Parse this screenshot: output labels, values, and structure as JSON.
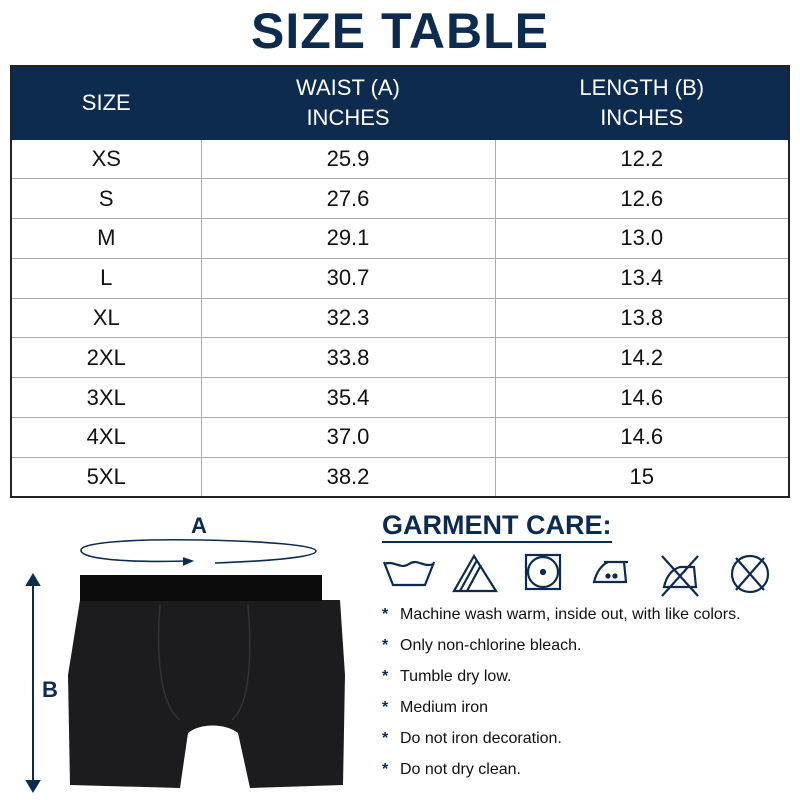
{
  "title": "SIZE TABLE",
  "table": {
    "headers": [
      [
        "SIZE"
      ],
      [
        "WAIST (A)",
        "INCHES"
      ],
      [
        "LENGTH (B)",
        "INCHES"
      ]
    ],
    "rows": [
      [
        "XS",
        "25.9",
        "12.2"
      ],
      [
        "S",
        "27.6",
        "12.6"
      ],
      [
        "M",
        "29.1",
        "13.0"
      ],
      [
        "L",
        "30.7",
        "13.4"
      ],
      [
        "XL",
        "32.3",
        "13.8"
      ],
      [
        "2XL",
        "33.8",
        "14.2"
      ],
      [
        "3XL",
        "35.4",
        "14.6"
      ],
      [
        "4XL",
        "37.0",
        "14.6"
      ],
      [
        "5XL",
        "38.2",
        "15"
      ]
    ]
  },
  "diagram": {
    "label_a": "A",
    "label_b": "B"
  },
  "care": {
    "title": "GARMENT CARE:",
    "icons": [
      "wash-warm-icon",
      "non-chlorine-bleach-icon",
      "tumble-dry-low-icon",
      "iron-medium-icon",
      "do-not-iron-decoration-icon",
      "do-not-dry-clean-icon"
    ],
    "instructions": [
      "Machine wash warm, inside out, with like colors.",
      "Only non-chlorine bleach.",
      "Tumble dry low.",
      "Medium iron",
      "Do not iron decoration.",
      "Do not dry clean."
    ]
  },
  "colors": {
    "navy": "#0d2b4e"
  }
}
